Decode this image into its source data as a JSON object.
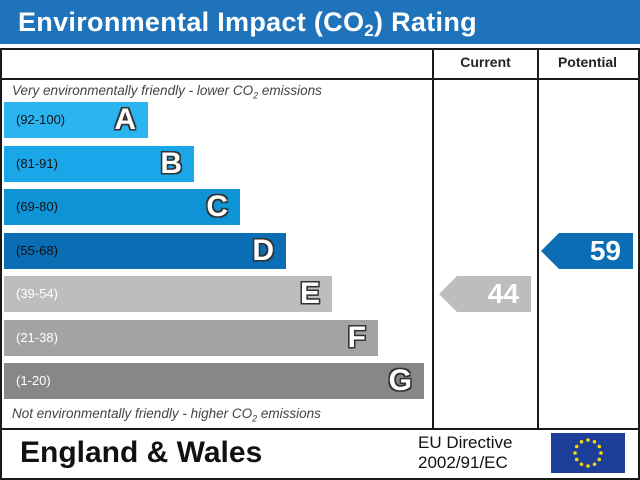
{
  "title": {
    "prefix": "Environmental Impact (CO",
    "sub": "2",
    "suffix": ") Rating"
  },
  "columns": {
    "current": "Current",
    "potential": "Potential"
  },
  "top_note": {
    "prefix": "Very environmentally friendly - lower CO",
    "sub": "2",
    "suffix": " emissions"
  },
  "bottom_note": {
    "prefix": "Not environmentally friendly - higher CO",
    "sub": "2",
    "suffix": " emissions"
  },
  "footer": {
    "region": "England & Wales",
    "directive_line1": "EU Directive",
    "directive_line2": "2002/91/EC"
  },
  "colors": {
    "title_bg": "#1f73bb",
    "flag_bg": "#1d3f9a",
    "flag_stars": "#f5d90a"
  },
  "chart_data": {
    "type": "bar",
    "categories": [
      "A",
      "B",
      "C",
      "D",
      "E",
      "F",
      "G"
    ],
    "ranges": [
      "(92-100)",
      "(81-91)",
      "(69-80)",
      "(55-68)",
      "(39-54)",
      "(21-38)",
      "(1-20)"
    ],
    "band_colors": [
      "#2ab4f0",
      "#1aa7ea",
      "#0e94d6",
      "#0b6db3",
      "#bdbdbd",
      "#a3a3a3",
      "#878787"
    ],
    "current": {
      "value": 44,
      "band": "E",
      "color": "#bdbdbd"
    },
    "potential": {
      "value": 59,
      "band": "D",
      "color": "#0b6db3"
    }
  }
}
